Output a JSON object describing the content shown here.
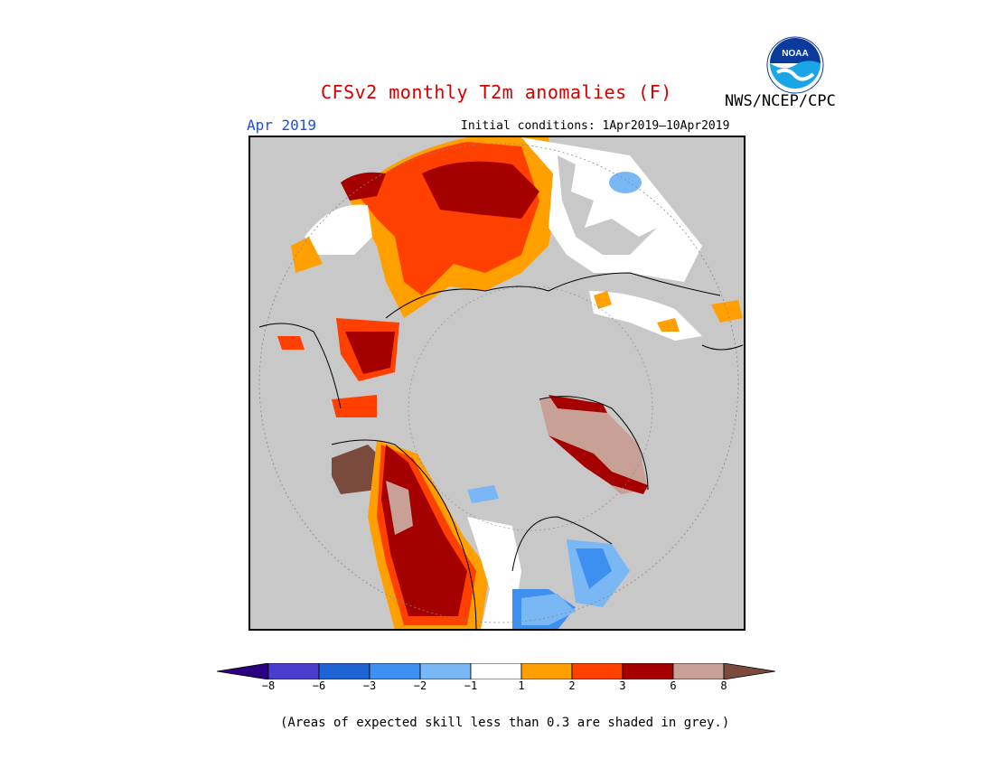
{
  "title": "CFSv2 monthly T2m anomalies (F)",
  "organization": "NWS/NCEP/CPC",
  "logo_text": "NOAA",
  "month": "Apr 2019",
  "initial_conditions": "Initial conditions: 1Apr2019–10Apr2019",
  "skill_note": "(Areas of expected skill less than 0.3 are shaded in grey.)",
  "colorbar": {
    "colors": [
      "#2a0080",
      "#4a3ccc",
      "#1e64d2",
      "#3d8ff0",
      "#7ab8f5",
      "#ffffff",
      "#ffa000",
      "#ff4000",
      "#a50000",
      "#c8a096",
      "#7a4a3c"
    ],
    "tick_labels": [
      "−8",
      "−6",
      "−3",
      "−2",
      "−1",
      "1",
      "2",
      "3",
      "6",
      "8"
    ]
  },
  "colors": {
    "title": "#d40000",
    "month": "#1f4fd8",
    "no_skill_grey": "#c8c8c8"
  }
}
